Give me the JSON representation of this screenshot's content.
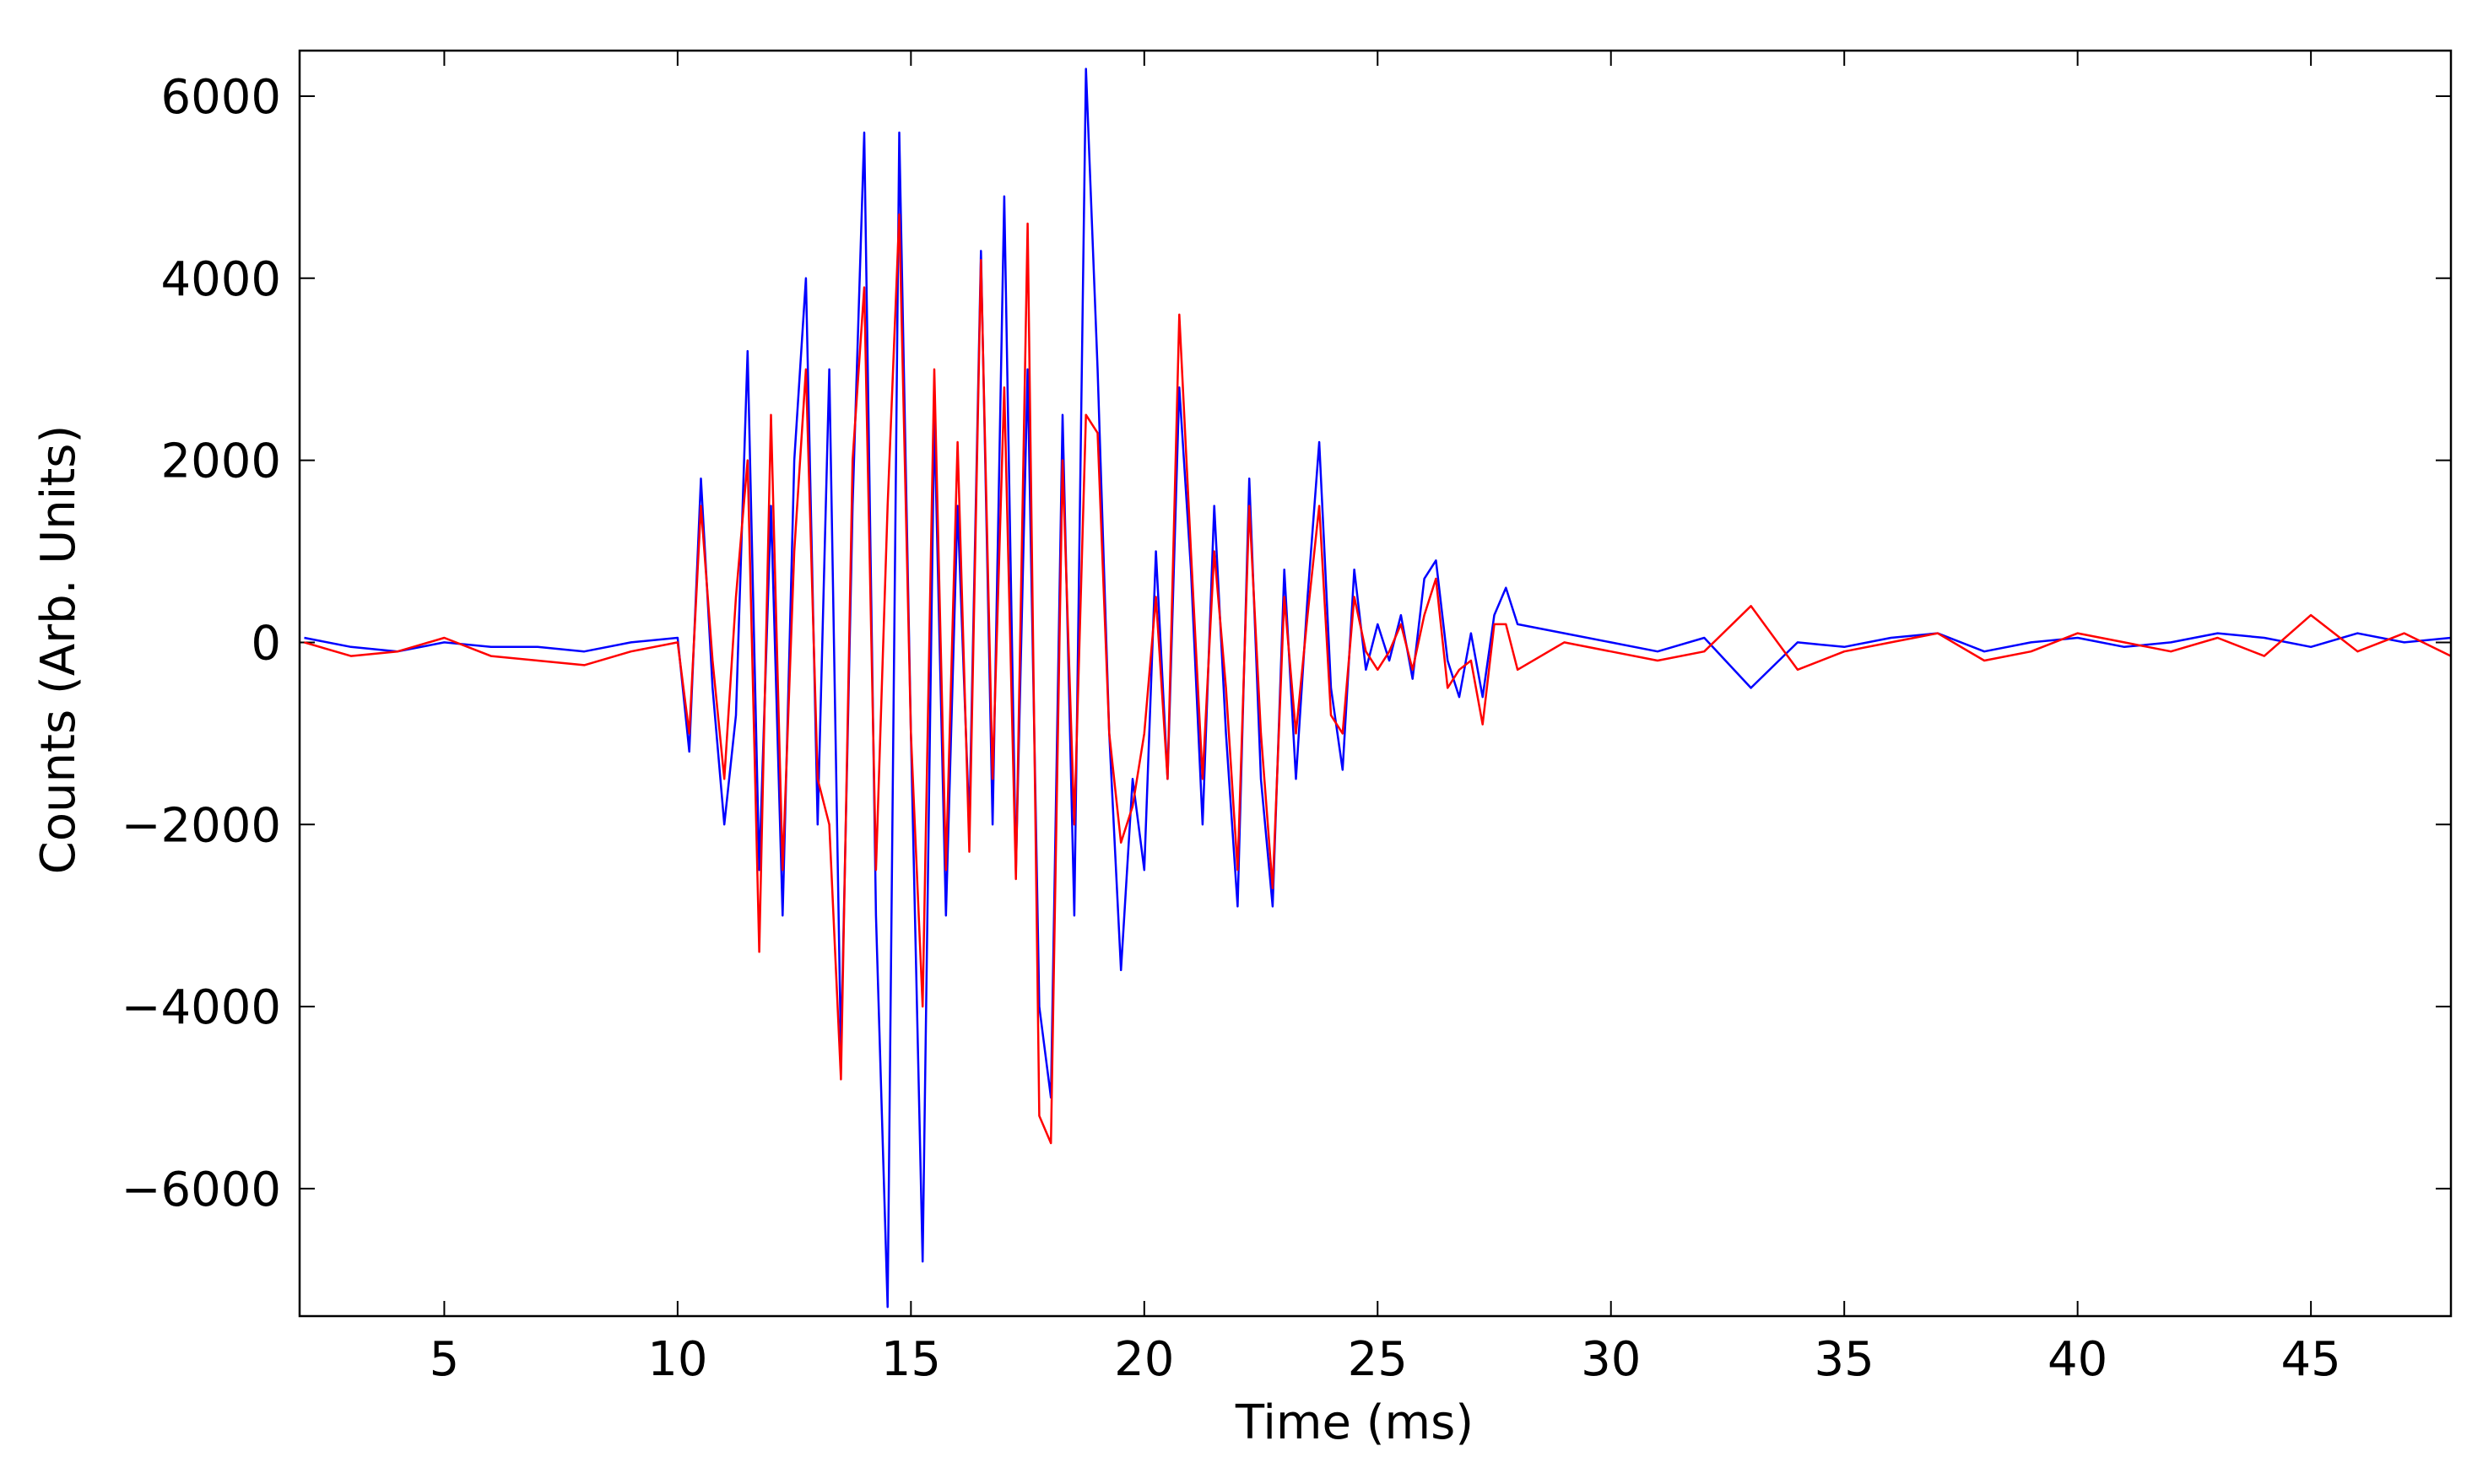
{
  "chart_data": {
    "type": "line",
    "xlabel": "Time (ms)",
    "ylabel": "Counts (Arb. Units)",
    "x": [
      2,
      3,
      4,
      5,
      6,
      7,
      8,
      9,
      10,
      10.25,
      10.5,
      10.75,
      11,
      11.25,
      11.5,
      11.75,
      12,
      12.25,
      12.5,
      12.75,
      13,
      13.25,
      13.5,
      13.75,
      14,
      14.25,
      14.5,
      14.75,
      15,
      15.25,
      15.5,
      15.75,
      16,
      16.25,
      16.5,
      16.75,
      17,
      17.25,
      17.5,
      17.75,
      18,
      18.25,
      18.5,
      18.75,
      19,
      19.25,
      19.5,
      19.75,
      20,
      20.25,
      20.5,
      20.75,
      21,
      21.25,
      21.5,
      21.75,
      22,
      22.25,
      22.5,
      22.75,
      23,
      23.25,
      23.5,
      23.75,
      24,
      24.25,
      24.5,
      24.75,
      25,
      25.25,
      25.5,
      25.75,
      26,
      26.25,
      26.5,
      26.75,
      27,
      27.25,
      27.5,
      27.75,
      28,
      29,
      30,
      31,
      32,
      33,
      34,
      35,
      36,
      37,
      38,
      39,
      40,
      41,
      42,
      43,
      44,
      45,
      46,
      47,
      48
    ],
    "series": [
      {
        "color": "#0000ff",
        "values": [
          50,
          -50,
          -100,
          0,
          -50,
          -50,
          -100,
          0,
          50,
          -1200,
          1800,
          -500,
          -2000,
          -800,
          3200,
          -2500,
          1500,
          -3000,
          2000,
          4000,
          -2000,
          3000,
          -4500,
          1500,
          5600,
          -3000,
          -7300,
          5600,
          -1000,
          -6800,
          2500,
          -3000,
          1500,
          -2000,
          4300,
          -2000,
          4900,
          -2500,
          3000,
          -4000,
          -5000,
          2500,
          -3000,
          6300,
          3000,
          -1000,
          -3600,
          -1500,
          -2500,
          1000,
          -1500,
          2800,
          800,
          -2000,
          1500,
          -1000,
          -2900,
          1800,
          -1500,
          -2900,
          800,
          -1500,
          500,
          2200,
          -500,
          -1400,
          800,
          -300,
          200,
          -200,
          300,
          -400,
          700,
          900,
          -200,
          -600,
          100,
          -600,
          300,
          600,
          200,
          100,
          0,
          -100,
          50,
          -500,
          0,
          -50,
          50,
          100,
          -100,
          0,
          50,
          -50,
          0,
          100,
          50,
          -50,
          100,
          0,
          50
        ]
      },
      {
        "color": "#ff0000",
        "values": [
          0,
          -150,
          -100,
          50,
          -150,
          -200,
          -250,
          -100,
          0,
          -1000,
          1500,
          -200,
          -1500,
          500,
          2000,
          -3400,
          2500,
          -2500,
          1000,
          3000,
          -1500,
          -2000,
          -4800,
          2000,
          3900,
          -2500,
          1500,
          4700,
          -1000,
          -4000,
          3000,
          -2500,
          2200,
          -2300,
          4200,
          -1500,
          2800,
          -2600,
          4600,
          -5200,
          -5500,
          2000,
          -2000,
          2500,
          2300,
          -1000,
          -2200,
          -1800,
          -1000,
          500,
          -1500,
          3600,
          1000,
          -1500,
          1000,
          -500,
          -2500,
          1500,
          -1000,
          -2700,
          500,
          -1000,
          300,
          1500,
          -800,
          -1000,
          500,
          -100,
          -300,
          -100,
          200,
          -300,
          300,
          700,
          -500,
          -300,
          -200,
          -900,
          200,
          200,
          -300,
          0,
          -100,
          -200,
          -100,
          400,
          -300,
          -100,
          0,
          100,
          -200,
          -100,
          100,
          0,
          -100,
          50,
          -150,
          300,
          -100,
          100,
          -150
        ]
      }
    ],
    "xlim": [
      1.9,
      48
    ],
    "xticks": [
      5,
      10,
      15,
      20,
      25,
      30,
      35,
      40,
      45
    ],
    "ylim": [
      -7400,
      6500
    ],
    "yticks": [
      {
        "value": -6000,
        "label": "−6000"
      },
      {
        "value": -4000,
        "label": "−4000"
      },
      {
        "value": -2000,
        "label": "−2000"
      },
      0,
      2000,
      4000,
      6000
    ],
    "grid": false
  }
}
